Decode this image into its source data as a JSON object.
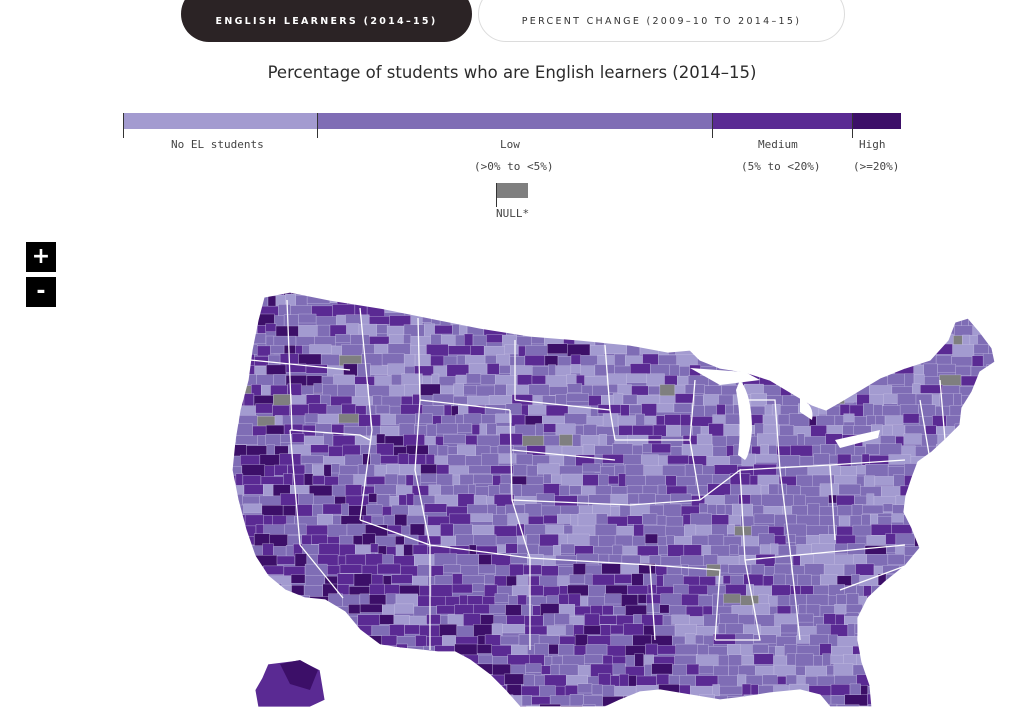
{
  "tabs": [
    {
      "label": "ENGLISH LEARNERS (2014–15)",
      "active": true
    },
    {
      "label": "PERCENT CHANGE (2009–10 TO 2014–15)",
      "active": false
    }
  ],
  "map": {
    "title": "Percentage of students who are English learners (2014–15)"
  },
  "legend": {
    "items": [
      {
        "label": "No EL students",
        "range": "",
        "color": "#a39bd0"
      },
      {
        "label": "Low",
        "range": "(>0% to <5%)",
        "color": "#7f6db5"
      },
      {
        "label": "Medium",
        "range": "(5% to <20%)",
        "color": "#5a2a93"
      },
      {
        "label": "High",
        "range": "(>=20%)",
        "color": "#3c0f68"
      }
    ],
    "null_label": "NULL*",
    "null_color": "#7f7f7f"
  },
  "zoom": {
    "in_label": "+",
    "out_label": "-"
  }
}
